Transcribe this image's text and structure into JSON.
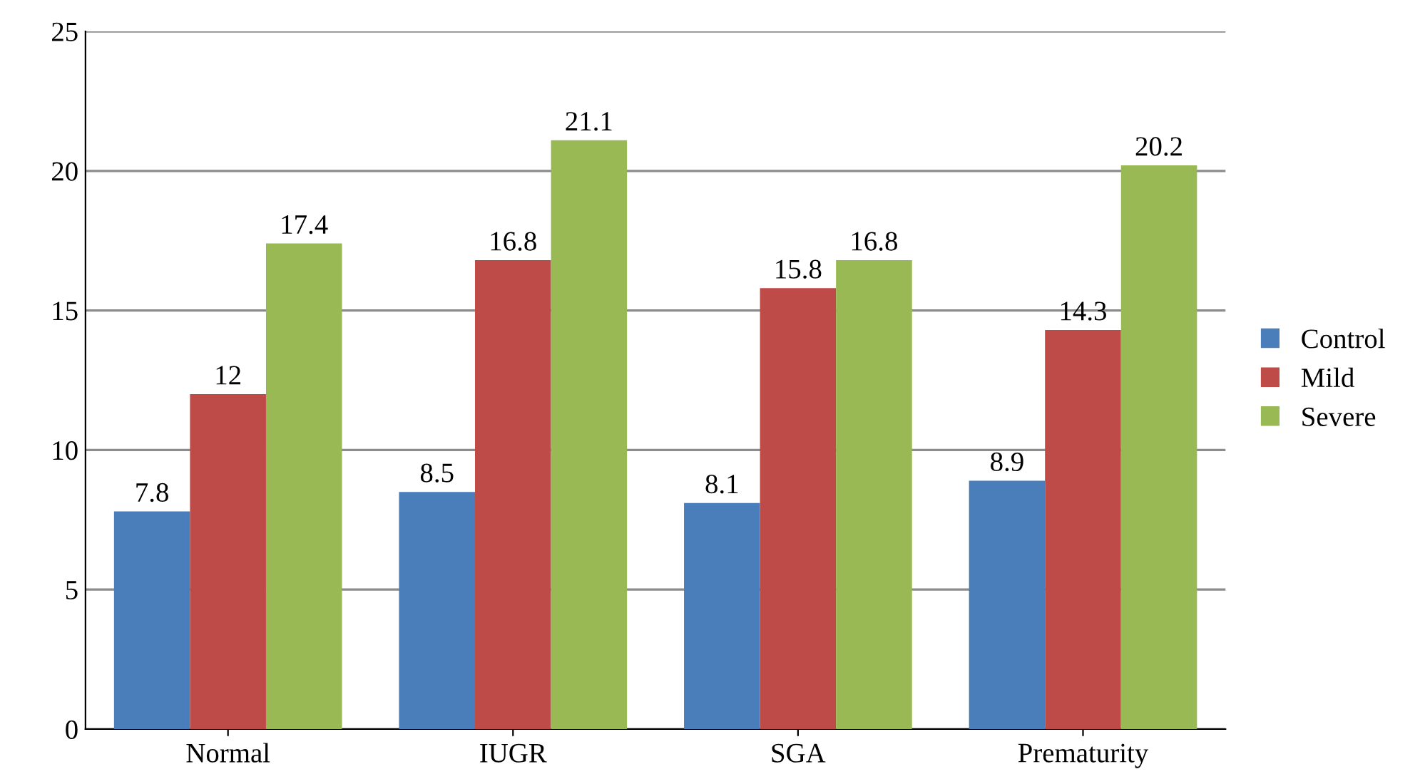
{
  "chart_data": {
    "type": "bar",
    "categories": [
      "Normal",
      "IUGR",
      "SGA",
      "Prematurity"
    ],
    "series": [
      {
        "name": "Control",
        "color": "#4a7ebb",
        "values": [
          7.8,
          8.5,
          8.1,
          8.9
        ]
      },
      {
        "name": "Mild",
        "color": "#be4b48",
        "values": [
          12,
          16.8,
          15.8,
          14.3
        ]
      },
      {
        "name": "Severe",
        "color": "#98b954",
        "values": [
          17.4,
          21.1,
          16.8,
          20.2
        ]
      }
    ],
    "ylim": [
      0,
      25
    ],
    "yticks": [
      0,
      5,
      10,
      15,
      20,
      25
    ],
    "grid": "y",
    "legend": "right",
    "data_labels": true
  }
}
